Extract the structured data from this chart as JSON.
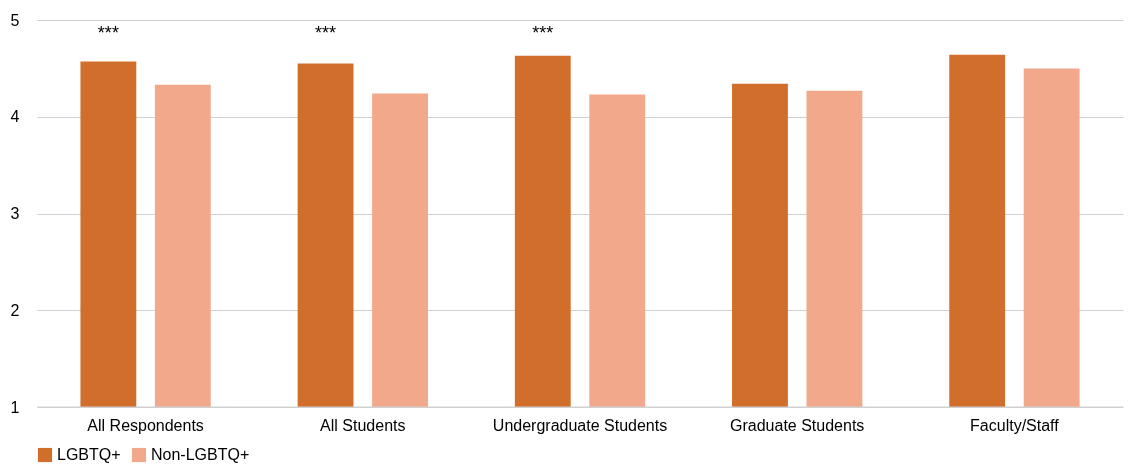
{
  "chart_data": {
    "type": "bar",
    "categories": [
      "All Respondents",
      "All Students",
      "Undergraduate Students",
      "Graduate Students",
      "Faculty/Staff"
    ],
    "series": [
      {
        "name": "LGBTQ+",
        "color": "#d26e2b",
        "values": [
          4.57,
          4.55,
          4.63,
          4.34,
          4.64
        ]
      },
      {
        "name": "Non-LGBTQ+",
        "color": "#f1a88b",
        "values": [
          4.33,
          4.24,
          4.23,
          4.27,
          4.5
        ]
      }
    ],
    "ylim": [
      1,
      5
    ],
    "yticks": [
      1,
      2,
      3,
      4,
      5
    ],
    "grid": "y",
    "legend": "bottom",
    "annotations": [
      "***",
      "***",
      "***"
    ]
  }
}
